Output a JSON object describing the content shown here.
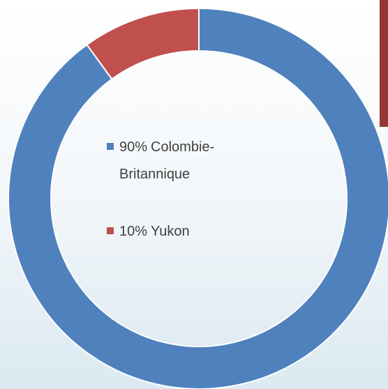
{
  "chart_data": {
    "type": "donut",
    "categories": [
      "Colombie-Britannique",
      "Yukon"
    ],
    "values": [
      90,
      10
    ],
    "value_labels": [
      "90%",
      "10%"
    ],
    "colors": [
      "#4f81bd",
      "#c0504d"
    ],
    "legend": "center"
  }
}
